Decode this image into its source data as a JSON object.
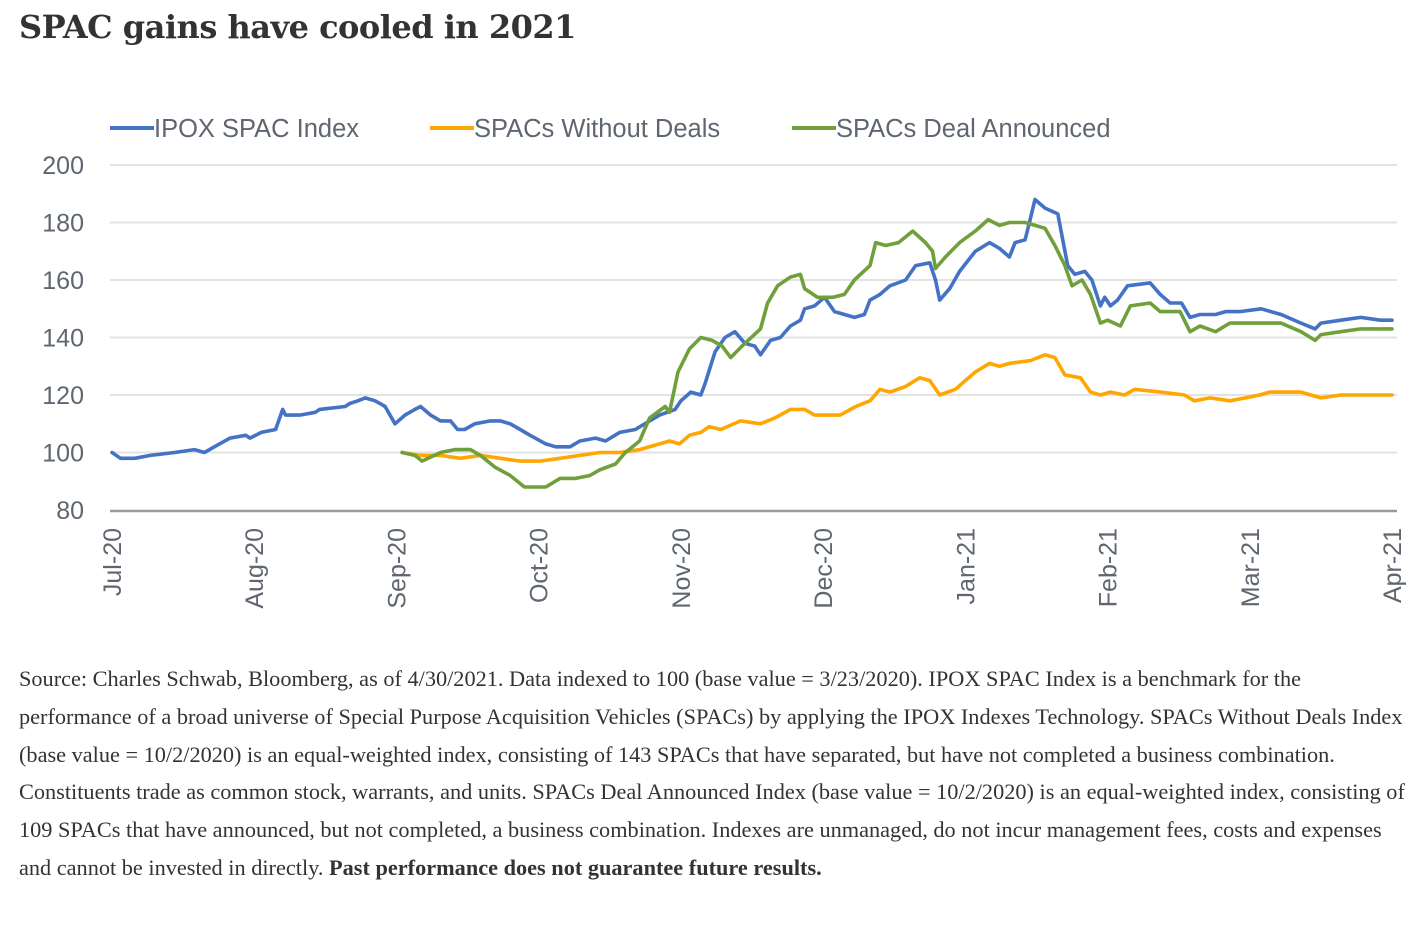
{
  "title": "SPAC gains have cooled in 2021",
  "caption": {
    "text": "Source: Charles Schwab, Bloomberg, as of 4/30/2021. Data indexed to 100 (base value = 3/23/2020). IPOX SPAC Index is a benchmark for the performance of a broad universe of Special Purpose Acquisition Vehicles (SPACs) by applying the IPOX Indexes Technology. SPACs Without Deals Index (base value = 10/2/2020) is an equal-weighted index, consisting of 143 SPACs that have separated, but have not completed a business combination. Constituents trade as common stock, warrants, and units. SPACs Deal Announced Index (base value = 10/2/2020) is an equal-weighted index, consisting of 109 SPACs that have announced, but not completed, a business combination.  Indexes are unmanaged, do not incur management fees, costs and expenses and cannot be invested in directly. ",
    "bold": "Past performance does not guarantee future results."
  },
  "chart_data": {
    "type": "line",
    "title": "SPAC gains have cooled in 2021",
    "xlabel": "",
    "ylabel": "",
    "x_unit": "months since Jul-20",
    "xlim": [
      0,
      9
    ],
    "ylim": [
      80,
      200
    ],
    "yticks": [
      80,
      100,
      120,
      140,
      160,
      180,
      200
    ],
    "xticks": [
      {
        "pos": 0,
        "label": "Jul-20"
      },
      {
        "pos": 1,
        "label": "Aug-20"
      },
      {
        "pos": 2,
        "label": "Sep-20"
      },
      {
        "pos": 3,
        "label": "Oct-20"
      },
      {
        "pos": 4,
        "label": "Nov-20"
      },
      {
        "pos": 5,
        "label": "Dec-20"
      },
      {
        "pos": 6,
        "label": "Jan-21"
      },
      {
        "pos": 7,
        "label": "Feb-21"
      },
      {
        "pos": 8,
        "label": "Mar-21"
      },
      {
        "pos": 9,
        "label": "Apr-21"
      }
    ],
    "grid": true,
    "legend_position": "top",
    "series": [
      {
        "name": "IPOX SPAC Index",
        "color": "#4472c4",
        "points": [
          [
            0,
            100
          ],
          [
            0.06,
            98
          ],
          [
            0.16,
            98
          ],
          [
            0.27,
            99
          ],
          [
            0.44,
            100
          ],
          [
            0.58,
            101
          ],
          [
            0.65,
            100
          ],
          [
            0.72,
            102
          ],
          [
            0.83,
            105
          ],
          [
            0.94,
            106
          ],
          [
            0.97,
            105
          ],
          [
            1.05,
            107
          ],
          [
            1.15,
            108
          ],
          [
            1.2,
            115
          ],
          [
            1.22,
            113
          ],
          [
            1.32,
            113
          ],
          [
            1.43,
            114
          ],
          [
            1.46,
            115
          ],
          [
            1.64,
            116
          ],
          [
            1.67,
            117
          ],
          [
            1.73,
            118
          ],
          [
            1.78,
            119
          ],
          [
            1.85,
            118
          ],
          [
            1.92,
            116
          ],
          [
            1.99,
            110
          ],
          [
            2.06,
            113
          ],
          [
            2.13,
            115
          ],
          [
            2.17,
            116
          ],
          [
            2.24,
            113
          ],
          [
            2.31,
            111
          ],
          [
            2.38,
            111
          ],
          [
            2.43,
            108
          ],
          [
            2.48,
            108
          ],
          [
            2.55,
            110
          ],
          [
            2.66,
            111
          ],
          [
            2.73,
            111
          ],
          [
            2.8,
            110
          ],
          [
            2.87,
            108
          ],
          [
            2.94,
            106
          ],
          [
            3.05,
            103
          ],
          [
            3.12,
            102
          ],
          [
            3.22,
            102
          ],
          [
            3.29,
            104
          ],
          [
            3.4,
            105
          ],
          [
            3.47,
            104
          ],
          [
            3.57,
            107
          ],
          [
            3.68,
            108
          ],
          [
            3.78,
            111
          ],
          [
            3.85,
            113
          ],
          [
            3.96,
            115
          ],
          [
            4.0,
            118
          ],
          [
            4.07,
            121
          ],
          [
            4.14,
            120
          ],
          [
            4.17,
            124
          ],
          [
            4.24,
            135
          ],
          [
            4.31,
            140
          ],
          [
            4.38,
            142
          ],
          [
            4.45,
            138
          ],
          [
            4.52,
            137
          ],
          [
            4.56,
            134
          ],
          [
            4.63,
            139
          ],
          [
            4.7,
            140
          ],
          [
            4.77,
            144
          ],
          [
            4.84,
            146
          ],
          [
            4.87,
            150
          ],
          [
            4.94,
            151
          ],
          [
            5.01,
            154
          ],
          [
            5.08,
            149
          ],
          [
            5.22,
            147
          ],
          [
            5.29,
            148
          ],
          [
            5.33,
            153
          ],
          [
            5.4,
            155
          ],
          [
            5.47,
            158
          ],
          [
            5.58,
            160
          ],
          [
            5.65,
            165
          ],
          [
            5.75,
            166
          ],
          [
            5.79,
            160
          ],
          [
            5.82,
            153
          ],
          [
            5.89,
            157
          ],
          [
            5.96,
            163
          ],
          [
            6.07,
            170
          ],
          [
            6.17,
            173
          ],
          [
            6.24,
            171
          ],
          [
            6.31,
            168
          ],
          [
            6.35,
            173
          ],
          [
            6.42,
            174
          ],
          [
            6.46,
            182
          ],
          [
            6.49,
            188
          ],
          [
            6.56,
            185
          ],
          [
            6.65,
            183
          ],
          [
            6.72,
            165
          ],
          [
            6.77,
            162
          ],
          [
            6.84,
            163
          ],
          [
            6.89,
            160
          ],
          [
            6.95,
            151
          ],
          [
            6.98,
            154
          ],
          [
            7.02,
            151
          ],
          [
            7.07,
            153
          ],
          [
            7.14,
            158
          ],
          [
            7.3,
            159
          ],
          [
            7.37,
            155
          ],
          [
            7.44,
            152
          ],
          [
            7.52,
            152
          ],
          [
            7.58,
            147
          ],
          [
            7.65,
            148
          ],
          [
            7.76,
            148
          ],
          [
            7.83,
            149
          ],
          [
            7.93,
            149
          ],
          [
            8.08,
            150
          ],
          [
            8.22,
            148
          ],
          [
            8.36,
            145
          ],
          [
            8.46,
            143
          ],
          [
            8.5,
            145
          ],
          [
            8.64,
            146
          ],
          [
            8.78,
            147
          ],
          [
            8.92,
            146
          ],
          [
            9.0,
            146
          ]
        ]
      },
      {
        "name": "SPACs Without Deals",
        "color": "#ffa600",
        "points": [
          [
            2.04,
            100
          ],
          [
            2.17,
            99
          ],
          [
            2.31,
            99
          ],
          [
            2.45,
            98
          ],
          [
            2.59,
            99
          ],
          [
            2.73,
            98
          ],
          [
            2.87,
            97
          ],
          [
            3.01,
            97
          ],
          [
            3.15,
            98
          ],
          [
            3.29,
            99
          ],
          [
            3.43,
            100
          ],
          [
            3.57,
            100
          ],
          [
            3.71,
            101
          ],
          [
            3.85,
            103
          ],
          [
            3.92,
            104
          ],
          [
            3.99,
            103
          ],
          [
            4.06,
            106
          ],
          [
            4.14,
            107
          ],
          [
            4.2,
            109
          ],
          [
            4.28,
            108
          ],
          [
            4.42,
            111
          ],
          [
            4.56,
            110
          ],
          [
            4.66,
            112
          ],
          [
            4.77,
            115
          ],
          [
            4.87,
            115
          ],
          [
            4.94,
            113
          ],
          [
            5.05,
            113
          ],
          [
            5.12,
            113
          ],
          [
            5.23,
            116
          ],
          [
            5.33,
            118
          ],
          [
            5.4,
            122
          ],
          [
            5.47,
            121
          ],
          [
            5.58,
            123
          ],
          [
            5.68,
            126
          ],
          [
            5.75,
            125
          ],
          [
            5.82,
            120
          ],
          [
            5.93,
            122
          ],
          [
            6.0,
            125
          ],
          [
            6.07,
            128
          ],
          [
            6.17,
            131
          ],
          [
            6.24,
            130
          ],
          [
            6.31,
            131
          ],
          [
            6.46,
            132
          ],
          [
            6.56,
            134
          ],
          [
            6.63,
            133
          ],
          [
            6.7,
            127
          ],
          [
            6.81,
            126
          ],
          [
            6.88,
            121
          ],
          [
            6.95,
            120
          ],
          [
            7.02,
            121
          ],
          [
            7.12,
            120
          ],
          [
            7.19,
            122
          ],
          [
            7.37,
            121
          ],
          [
            7.54,
            120
          ],
          [
            7.61,
            118
          ],
          [
            7.72,
            119
          ],
          [
            7.86,
            118
          ],
          [
            7.97,
            119
          ],
          [
            8.07,
            120
          ],
          [
            8.14,
            121
          ],
          [
            8.36,
            121
          ],
          [
            8.5,
            119
          ],
          [
            8.64,
            120
          ],
          [
            9.0,
            120
          ]
        ]
      },
      {
        "name": "SPACs Deal Announced",
        "color": "#70a03c",
        "points": [
          [
            2.04,
            100
          ],
          [
            2.13,
            99
          ],
          [
            2.18,
            97
          ],
          [
            2.31,
            100
          ],
          [
            2.41,
            101
          ],
          [
            2.52,
            101
          ],
          [
            2.59,
            99
          ],
          [
            2.69,
            95
          ],
          [
            2.8,
            92
          ],
          [
            2.9,
            88
          ],
          [
            3.05,
            88
          ],
          [
            3.15,
            91
          ],
          [
            3.26,
            91
          ],
          [
            3.36,
            92
          ],
          [
            3.43,
            94
          ],
          [
            3.54,
            96
          ],
          [
            3.61,
            100
          ],
          [
            3.71,
            104
          ],
          [
            3.78,
            112
          ],
          [
            3.89,
            116
          ],
          [
            3.92,
            114
          ],
          [
            3.98,
            128
          ],
          [
            4.06,
            136
          ],
          [
            4.14,
            140
          ],
          [
            4.22,
            139
          ],
          [
            4.29,
            137
          ],
          [
            4.35,
            133
          ],
          [
            4.43,
            137
          ],
          [
            4.56,
            143
          ],
          [
            4.61,
            152
          ],
          [
            4.68,
            158
          ],
          [
            4.77,
            161
          ],
          [
            4.84,
            162
          ],
          [
            4.87,
            157
          ],
          [
            4.96,
            154
          ],
          [
            5.07,
            154
          ],
          [
            5.15,
            155
          ],
          [
            5.22,
            160
          ],
          [
            5.33,
            165
          ],
          [
            5.37,
            173
          ],
          [
            5.44,
            172
          ],
          [
            5.53,
            173
          ],
          [
            5.58,
            175
          ],
          [
            5.63,
            177
          ],
          [
            5.72,
            173
          ],
          [
            5.77,
            170
          ],
          [
            5.79,
            164
          ],
          [
            5.86,
            168
          ],
          [
            5.96,
            173
          ],
          [
            6.07,
            177
          ],
          [
            6.16,
            181
          ],
          [
            6.24,
            179
          ],
          [
            6.31,
            180
          ],
          [
            6.42,
            180
          ],
          [
            6.49,
            179
          ],
          [
            6.56,
            178
          ],
          [
            6.63,
            172
          ],
          [
            6.7,
            165
          ],
          [
            6.75,
            158
          ],
          [
            6.82,
            160
          ],
          [
            6.88,
            155
          ],
          [
            6.95,
            145
          ],
          [
            7.0,
            146
          ],
          [
            7.09,
            144
          ],
          [
            7.16,
            151
          ],
          [
            7.3,
            152
          ],
          [
            7.37,
            149
          ],
          [
            7.51,
            149
          ],
          [
            7.58,
            142
          ],
          [
            7.65,
            144
          ],
          [
            7.76,
            142
          ],
          [
            7.86,
            145
          ],
          [
            8.07,
            145
          ],
          [
            8.22,
            145
          ],
          [
            8.36,
            142
          ],
          [
            8.46,
            139
          ],
          [
            8.5,
            141
          ],
          [
            8.64,
            142
          ],
          [
            8.78,
            143
          ],
          [
            9.0,
            143
          ]
        ]
      }
    ]
  }
}
